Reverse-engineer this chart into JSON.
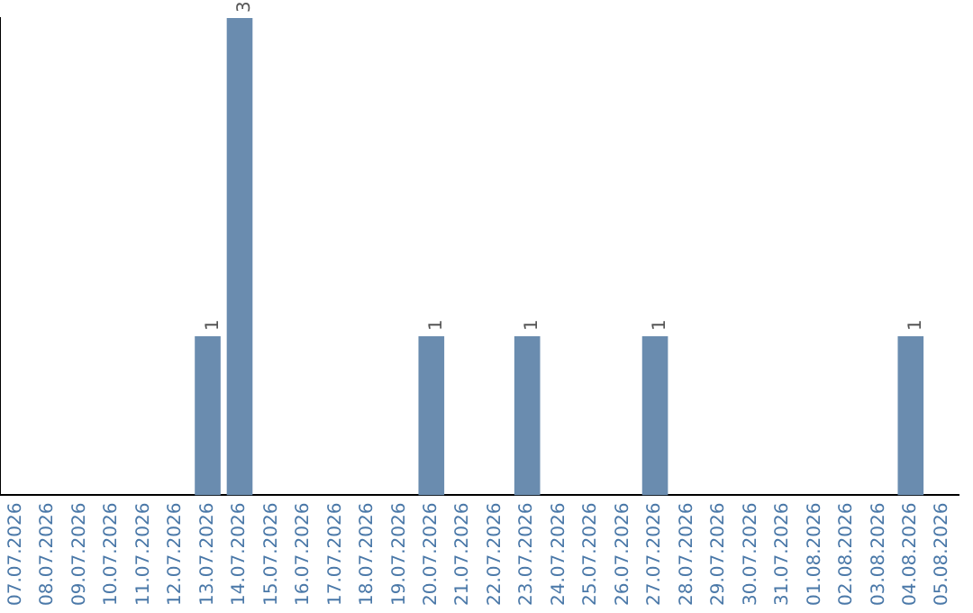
{
  "chart_data": {
    "type": "bar",
    "categories": [
      "07.07.2026",
      "08.07.2026",
      "09.07.2026",
      "10.07.2026",
      "11.07.2026",
      "12.07.2026",
      "13.07.2026",
      "14.07.2026",
      "15.07.2026",
      "16.07.2026",
      "17.07.2026",
      "18.07.2026",
      "19.07.2026",
      "20.07.2026",
      "21.07.2026",
      "22.07.2026",
      "23.07.2026",
      "24.07.2026",
      "25.07.2026",
      "26.07.2026",
      "27.07.2026",
      "28.07.2026",
      "29.07.2026",
      "30.07.2026",
      "31.07.2026",
      "01.08.2026",
      "02.08.2026",
      "03.08.2026",
      "04.08.2026",
      "05.08.2026"
    ],
    "values": [
      0,
      0,
      0,
      0,
      0,
      0,
      1,
      3,
      0,
      0,
      0,
      0,
      0,
      1,
      0,
      0,
      1,
      0,
      0,
      0,
      1,
      0,
      0,
      0,
      0,
      0,
      0,
      0,
      1,
      0
    ],
    "value_labels": [
      null,
      null,
      null,
      null,
      null,
      null,
      "1",
      "3",
      null,
      null,
      null,
      null,
      null,
      "1",
      null,
      null,
      "1",
      null,
      null,
      null,
      "1",
      null,
      null,
      null,
      null,
      null,
      null,
      null,
      "1",
      null
    ],
    "color": "#6a8caf",
    "ylim": [
      0,
      3
    ],
    "tick_labels": "x",
    "grid": false,
    "legend": false
  }
}
